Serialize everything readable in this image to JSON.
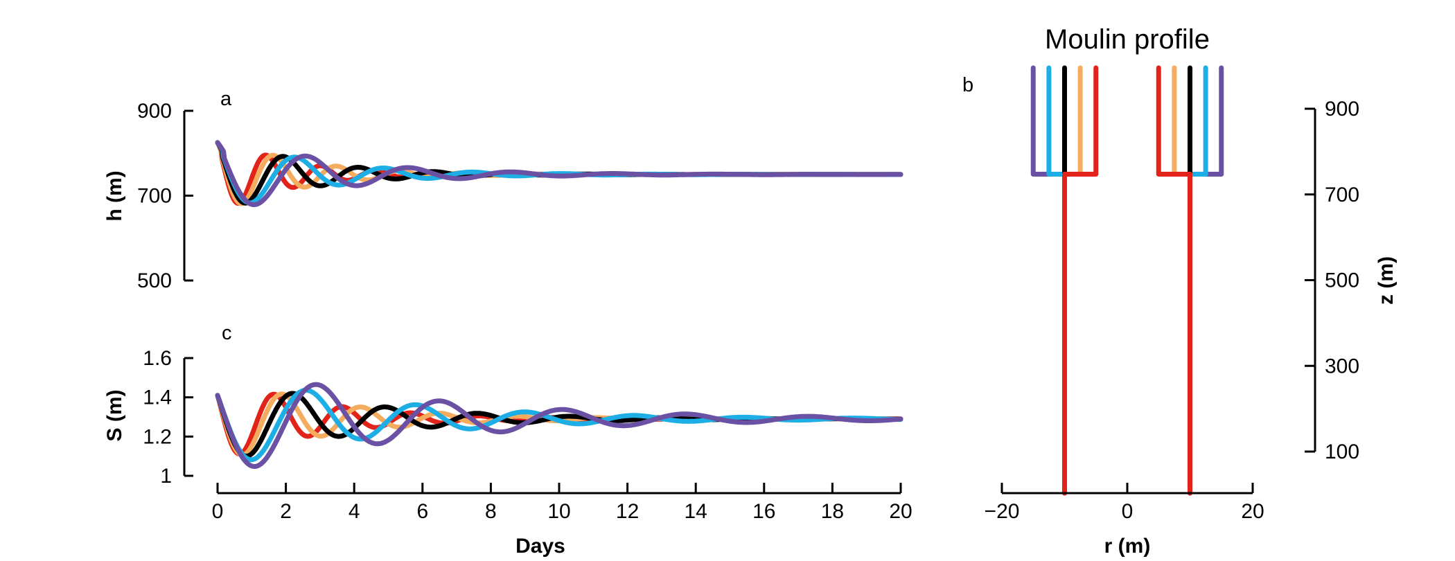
{
  "colors": {
    "red": "#e2231a",
    "orange": "#f4ac5e",
    "black": "#000000",
    "cyan": "#1eaee6",
    "purple": "#6a51a3"
  },
  "chart_data": [
    {
      "type": "line",
      "panel": "a",
      "title": "",
      "xlabel": "",
      "ylabel": "h (m)",
      "xlim": [
        0,
        20
      ],
      "ylim": [
        500,
        900
      ],
      "yticks": [
        "500",
        "700",
        "900"
      ],
      "series": [
        {
          "color": "#e2231a",
          "equilibrium": 750,
          "start": 825,
          "amplitude": 55,
          "period": 1.6,
          "decay": 0.5,
          "phase": 0.0,
          "lag": 0.1
        },
        {
          "color": "#f4ac5e",
          "equilibrium": 750,
          "start": 825,
          "amplitude": 58,
          "period": 1.85,
          "decay": 0.45,
          "phase": 0.0,
          "lag": 0.12
        },
        {
          "color": "#000000",
          "equilibrium": 750,
          "start": 825,
          "amplitude": 60,
          "period": 2.2,
          "decay": 0.42,
          "phase": 0.0,
          "lag": 0.14
        },
        {
          "color": "#1eaee6",
          "equilibrium": 750,
          "start": 825,
          "amplitude": 62,
          "period": 2.6,
          "decay": 0.38,
          "phase": 0.0,
          "lag": 0.16
        },
        {
          "color": "#6a51a3",
          "equilibrium": 750,
          "start": 825,
          "amplitude": 70,
          "period": 3.0,
          "decay": 0.33,
          "phase": 0.0,
          "lag": 0.18
        }
      ],
      "xticks": [
        "0",
        "2",
        "4",
        "6",
        "8",
        "10",
        "12",
        "14",
        "16",
        "18",
        "20"
      ]
    },
    {
      "type": "line",
      "panel": "c",
      "title": "",
      "xlabel": "Days",
      "ylabel": "S (m)",
      "xlim": [
        0,
        20
      ],
      "ylim": [
        1.0,
        1.6
      ],
      "yticks": [
        "1",
        "1.2",
        "1.4",
        "1.6"
      ],
      "series": [
        {
          "color": "#e2231a",
          "equilibrium": 1.29,
          "start": 1.42,
          "amplitude": 0.14,
          "period": 2.0,
          "decay": 0.35,
          "phase": 0.4,
          "lag": 0.0
        },
        {
          "color": "#f4ac5e",
          "equilibrium": 1.29,
          "start": 1.42,
          "amplitude": 0.15,
          "period": 2.3,
          "decay": 0.32,
          "phase": 0.4,
          "lag": 0.0
        },
        {
          "color": "#000000",
          "equilibrium": 1.29,
          "start": 1.42,
          "amplitude": 0.16,
          "period": 2.7,
          "decay": 0.28,
          "phase": 0.4,
          "lag": 0.0
        },
        {
          "color": "#1eaee6",
          "equilibrium": 1.29,
          "start": 1.42,
          "amplitude": 0.18,
          "period": 3.2,
          "decay": 0.22,
          "phase": 0.4,
          "lag": 0.0
        },
        {
          "color": "#6a51a3",
          "equilibrium": 1.29,
          "start": 1.42,
          "amplitude": 0.22,
          "period": 3.6,
          "decay": 0.18,
          "phase": 0.4,
          "lag": 0.0
        }
      ]
    },
    {
      "type": "line",
      "panel": "b",
      "title": "Moulin profile",
      "xlabel": "r (m)",
      "ylabel": "z (m)",
      "xlim": [
        -20,
        20
      ],
      "ylim": [
        0,
        1000
      ],
      "xticks": [
        "−20",
        "0",
        "20"
      ],
      "yticks": [
        "100",
        "300",
        "500",
        "700",
        "900"
      ],
      "profile": {
        "lower_radius": 10,
        "transition_z": 750,
        "top_z": 1000,
        "series": [
          {
            "color": "#e2231a",
            "upper_radius": 5
          },
          {
            "color": "#f4ac5e",
            "upper_radius": 7.5
          },
          {
            "color": "#000000",
            "upper_radius": 10
          },
          {
            "color": "#1eaee6",
            "upper_radius": 12.5
          },
          {
            "color": "#6a51a3",
            "upper_radius": 15
          }
        ]
      }
    }
  ]
}
